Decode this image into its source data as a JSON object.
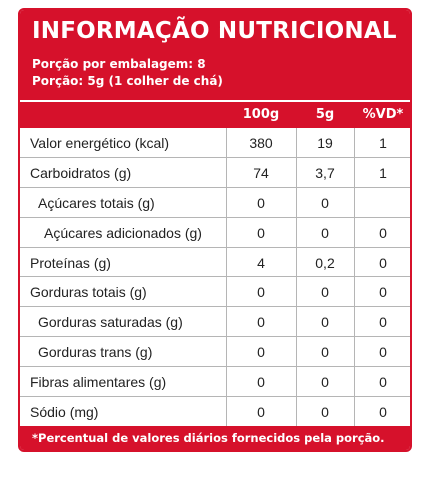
{
  "header": {
    "title": "INFORMAÇÃO NUTRICIONAL",
    "portions_per_package": "Porção por embalagem: 8",
    "portion_size": "Porção: 5g (1 colher de chá)"
  },
  "table": {
    "columns": [
      "100g",
      "5g",
      "%VD*"
    ],
    "rows": [
      {
        "label": "Valor energético (kcal)",
        "v100": "380",
        "v5": "19",
        "vd": "1"
      },
      {
        "label": "Carboidratos (g)",
        "v100": "74",
        "v5": "3,7",
        "vd": "1"
      },
      {
        "label": "Açúcares totais (g)",
        "v100": "0",
        "v5": "0",
        "vd": ""
      },
      {
        "label": "Açúcares adicionados (g)",
        "v100": "0",
        "v5": "0",
        "vd": "0"
      },
      {
        "label": "Proteínas (g)",
        "v100": "4",
        "v5": "0,2",
        "vd": "0"
      },
      {
        "label": "Gorduras totais (g)",
        "v100": "0",
        "v5": "0",
        "vd": "0"
      },
      {
        "label": "Gorduras saturadas (g)",
        "v100": "0",
        "v5": "0",
        "vd": "0"
      },
      {
        "label": "Gorduras trans (g)",
        "v100": "0",
        "v5": "0",
        "vd": "0"
      },
      {
        "label": "Fibras alimentares (g)",
        "v100": "0",
        "v5": "0",
        "vd": "0"
      },
      {
        "label": "Sódio (mg)",
        "v100": "0",
        "v5": "0",
        "vd": "0"
      }
    ]
  },
  "footer": {
    "note": "*Percentual de valores diários fornecidos pela porção."
  },
  "colors": {
    "accent": "#d6112b",
    "grid": "#b5b5b5",
    "text": "#222222"
  }
}
